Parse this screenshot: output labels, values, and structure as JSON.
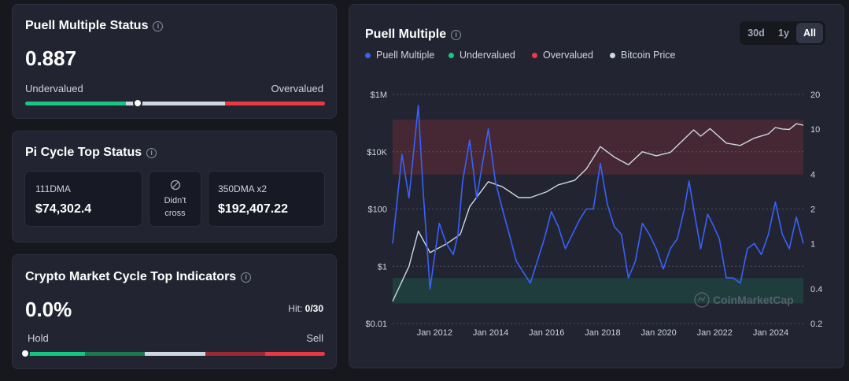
{
  "puell_status": {
    "title": "Puell Multiple Status",
    "value": "0.887",
    "left_label": "Undervalued",
    "right_label": "Overvalued",
    "position_fraction": 0.376
  },
  "pi_cycle": {
    "title": "Pi Cycle Top Status",
    "dma111": {
      "label": "111DMA",
      "value": "$74,302.4"
    },
    "middle": {
      "line1": "Didn't",
      "line2": "cross"
    },
    "dma350": {
      "label": "350DMA x2",
      "value": "$192,407.22"
    }
  },
  "crypto_cycle": {
    "title": "Crypto Market Cycle Top Indicators",
    "value": "0.0%",
    "hit_label": "Hit:",
    "hit_value": "0/30",
    "left_label": "Hold",
    "right_label": "Sell",
    "position_fraction": 0.0
  },
  "chart_card": {
    "title": "Puell Multiple",
    "range_buttons": [
      "30d",
      "1y",
      "All"
    ],
    "active_range": "All",
    "legend": [
      {
        "label": "Puell Multiple",
        "color": "#3861fb"
      },
      {
        "label": "Undervalued",
        "color": "#16c784"
      },
      {
        "label": "Overvalued",
        "color": "#ea3943"
      },
      {
        "label": "Bitcoin Price",
        "color": "#cfd6e4"
      }
    ],
    "watermark": "CoinMarketCap"
  },
  "colors": {
    "background": "#17181e",
    "card": "#222531",
    "green": "#16c784",
    "red": "#ea3943",
    "blue": "#3861fb",
    "gray_bar": "#cfd6e4"
  },
  "chart_data": {
    "type": "line",
    "x_range": [
      "2010-07",
      "2025-03"
    ],
    "x_ticks": [
      "Jan 2012",
      "Jan 2014",
      "Jan 2016",
      "Jan 2018",
      "Jan 2020",
      "Jan 2022",
      "Jan 2024"
    ],
    "left_axis": {
      "label": "Bitcoin Price",
      "scale": "log",
      "ticks": [
        "$0.01",
        "$1",
        "$100",
        "$10K",
        "$1M"
      ],
      "range": [
        0.01,
        1000000
      ]
    },
    "right_axis": {
      "label": "Puell Multiple",
      "scale": "log",
      "ticks": [
        "0.2",
        "0.4",
        "1",
        "2",
        "4",
        "10",
        "20"
      ],
      "range": [
        0.2,
        20
      ]
    },
    "zones": [
      {
        "name": "Overvalued",
        "from": 4,
        "to": 12
      },
      {
        "name": "Undervalued",
        "from": 0.3,
        "to": 0.5
      }
    ],
    "series": [
      {
        "name": "Puell Multiple",
        "axis": "right",
        "x": [
          "2010-07",
          "2010-11",
          "2011-02",
          "2011-06",
          "2011-08",
          "2011-11",
          "2012-03",
          "2012-06",
          "2012-09",
          "2012-11",
          "2013-01",
          "2013-04",
          "2013-07",
          "2013-12",
          "2014-03",
          "2014-06",
          "2014-09",
          "2014-12",
          "2015-06",
          "2015-09",
          "2015-12",
          "2016-03",
          "2016-06",
          "2016-09",
          "2016-12",
          "2017-03",
          "2017-06",
          "2017-09",
          "2017-12",
          "2018-03",
          "2018-06",
          "2018-09",
          "2018-12",
          "2019-03",
          "2019-06",
          "2019-09",
          "2019-12",
          "2020-03",
          "2020-06",
          "2020-09",
          "2020-12",
          "2021-02",
          "2021-04",
          "2021-07",
          "2021-10",
          "2021-12",
          "2022-03",
          "2022-06",
          "2022-09",
          "2022-12",
          "2023-03",
          "2023-06",
          "2023-09",
          "2023-12",
          "2024-03",
          "2024-06",
          "2024-09",
          "2024-12",
          "2025-03"
        ],
        "values": [
          1.0,
          6.0,
          2.5,
          16.0,
          3.0,
          0.4,
          1.5,
          1.0,
          0.8,
          1.2,
          3.5,
          8.0,
          2.5,
          10.0,
          3.5,
          2.0,
          1.2,
          0.7,
          0.45,
          0.7,
          1.1,
          1.9,
          1.4,
          0.9,
          1.2,
          1.6,
          2.0,
          2.0,
          5.0,
          2.2,
          1.4,
          1.2,
          0.5,
          0.7,
          1.5,
          1.2,
          0.9,
          0.6,
          0.9,
          1.1,
          2.0,
          3.5,
          2.0,
          0.9,
          1.8,
          1.5,
          1.1,
          0.5,
          0.5,
          0.45,
          0.9,
          1.0,
          0.8,
          1.2,
          2.3,
          1.2,
          0.9,
          1.7,
          1.0
        ]
      },
      {
        "name": "Bitcoin Price",
        "axis": "left",
        "x": [
          "2010-07",
          "2010-11",
          "2011-02",
          "2011-06",
          "2011-11",
          "2012-06",
          "2012-12",
          "2013-04",
          "2013-12",
          "2014-06",
          "2015-01",
          "2015-06",
          "2016-01",
          "2016-06",
          "2017-01",
          "2017-06",
          "2017-12",
          "2018-06",
          "2018-12",
          "2019-06",
          "2019-12",
          "2020-06",
          "2020-12",
          "2021-04",
          "2021-07",
          "2021-11",
          "2022-06",
          "2022-12",
          "2023-06",
          "2023-12",
          "2024-03",
          "2024-06",
          "2024-09",
          "2024-12",
          "2025-03"
        ],
        "values": [
          0.06,
          0.3,
          1.0,
          17,
          3,
          6,
          13,
          120,
          900,
          600,
          250,
          250,
          400,
          700,
          1000,
          2500,
          15000,
          6500,
          3500,
          10000,
          7200,
          9500,
          28000,
          58000,
          35000,
          64000,
          20000,
          16500,
          30000,
          42000,
          70000,
          62000,
          60000,
          95000,
          84000
        ]
      }
    ]
  }
}
